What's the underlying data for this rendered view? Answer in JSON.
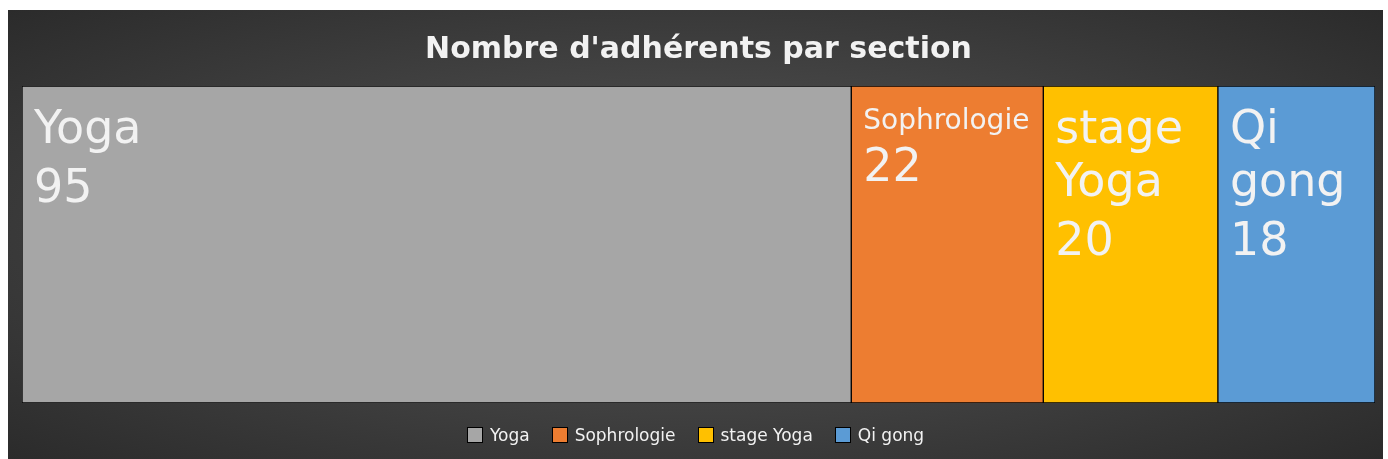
{
  "chart_data": {
    "type": "other",
    "title": "Nombre d'adhérents par section",
    "categories": [
      "Yoga",
      "Sophrologie",
      "stage Yoga",
      "Qi gong"
    ],
    "values": [
      95,
      22,
      20,
      18
    ],
    "colors": [
      "#a6a6a6",
      "#ed7d31",
      "#ffc000",
      "#5b9bd5"
    ],
    "data_labels": true
  }
}
